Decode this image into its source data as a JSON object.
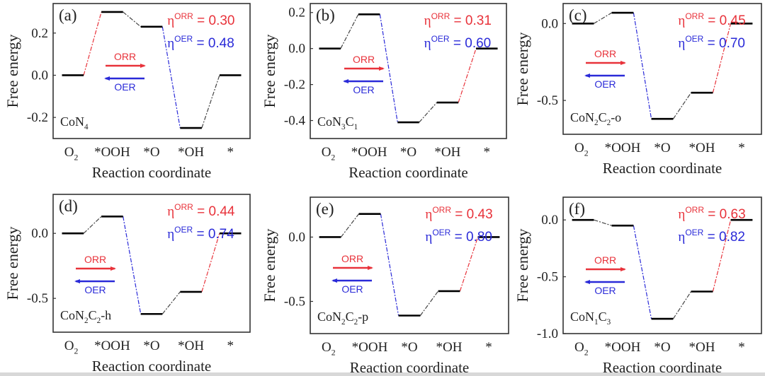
{
  "figure": {
    "ylabel": "Free energy",
    "xlabel": "Reaction coordinate",
    "steps": [
      "O2",
      "*OOH",
      "*O",
      "*OH",
      "*"
    ],
    "orr_label": "ORR",
    "oer_label": "OER",
    "eta_symbol": "η",
    "orr_color": "#e8323a",
    "oer_color": "#2a2ad8",
    "level_color": "#000000",
    "connector_color": "#444444"
  },
  "chart_data": [
    {
      "type": "line",
      "panel": "(a)",
      "catalyst": {
        "base": "CoN",
        "parts": [
          [
            "N",
            "4"
          ]
        ],
        "text": "CoN4"
      },
      "title": "",
      "xlabel": "Reaction coordinate",
      "ylabel": "Free energy",
      "categories": [
        "O2",
        "*OOH",
        "*O",
        "*OH",
        "*"
      ],
      "values": [
        0.0,
        0.3,
        0.23,
        -0.25,
        0.0
      ],
      "connector_colors": [
        "orr",
        "neutral",
        "oer",
        "neutral"
      ],
      "yticks": [
        -0.2,
        0.0,
        0.2
      ],
      "ytick_labels": [
        "-0.2",
        "0.0",
        "0.2"
      ],
      "ylim": [
        -0.3,
        0.34
      ],
      "eta_orr": "0.30",
      "eta_oer": "0.48",
      "grid": false,
      "legend": "arrows ORR (right, red) / OER (left, blue) at center-left"
    },
    {
      "type": "line",
      "panel": "(b)",
      "catalyst": {
        "text": "CoN3C1"
      },
      "title": "",
      "xlabel": "Reaction coordinate",
      "ylabel": "Free energy",
      "categories": [
        "O2",
        "*OOH",
        "*O",
        "*OH",
        "*"
      ],
      "values": [
        0.0,
        0.19,
        -0.41,
        -0.3,
        0.0
      ],
      "connector_colors": [
        "neutral",
        "oer",
        "neutral",
        "orr"
      ],
      "yticks": [
        -0.4,
        -0.2,
        0.0,
        0.2
      ],
      "ytick_labels": [
        "-0.4",
        "-0.2",
        "0.0",
        "0.2"
      ],
      "ylim": [
        -0.5,
        0.25
      ],
      "eta_orr": "0.31",
      "eta_oer": "0.60",
      "grid": false,
      "legend": "arrows ORR (right, red) / OER (left, blue) at center-left"
    },
    {
      "type": "line",
      "panel": "(c)",
      "catalyst": {
        "text": "CoN2C2-o"
      },
      "title": "",
      "xlabel": "Reaction coordinate",
      "ylabel": "Free energy",
      "categories": [
        "O2",
        "*OOH",
        "*O",
        "*OH",
        "*"
      ],
      "values": [
        0.0,
        0.07,
        -0.62,
        -0.45,
        0.0
      ],
      "connector_colors": [
        "neutral",
        "oer",
        "neutral",
        "orr"
      ],
      "yticks": [
        -0.5,
        0.0
      ],
      "ytick_labels": [
        "-0.5",
        "0.0"
      ],
      "ylim": [
        -0.72,
        0.13
      ],
      "eta_orr": "0.45",
      "eta_oer": "0.70",
      "grid": false,
      "legend": "arrows ORR (right, red) / OER (left, blue) at center-left"
    },
    {
      "type": "line",
      "panel": "(d)",
      "catalyst": {
        "text": "CoN2C2-h"
      },
      "title": "",
      "xlabel": "Reaction coordinate",
      "ylabel": "Free energy",
      "categories": [
        "O2",
        "*OOH",
        "*O",
        "*OH",
        "*"
      ],
      "values": [
        0.0,
        0.13,
        -0.62,
        -0.45,
        0.0
      ],
      "connector_colors": [
        "neutral",
        "oer",
        "neutral",
        "orr"
      ],
      "yticks": [
        -0.5,
        0.0
      ],
      "ytick_labels": [
        "-0.5",
        "0.0"
      ],
      "ylim": [
        -0.76,
        0.3
      ],
      "eta_orr": "0.44",
      "eta_oer": "0.74",
      "grid": false,
      "legend": "arrows ORR (right, red) / OER (left, blue) at center-left"
    },
    {
      "type": "line",
      "panel": "(e)",
      "catalyst": {
        "text": "CoN2C2-p"
      },
      "title": "",
      "xlabel": "Reaction coordinate",
      "ylabel": "Free energy",
      "categories": [
        "O2",
        "*OOH",
        "*O",
        "*OH",
        "*"
      ],
      "values": [
        0.0,
        0.18,
        -0.61,
        -0.42,
        0.0
      ],
      "connector_colors": [
        "neutral",
        "oer",
        "neutral",
        "orr"
      ],
      "yticks": [
        -0.5,
        0.0
      ],
      "ytick_labels": [
        "-0.5",
        "0.0"
      ],
      "ylim": [
        -0.75,
        0.31
      ],
      "eta_orr": "0.43",
      "eta_oer": "0.80",
      "grid": false,
      "legend": "arrows ORR (right, red) / OER (left, blue) at center-left"
    },
    {
      "type": "line",
      "panel": "(f)",
      "catalyst": {
        "text": "CoN1C3"
      },
      "title": "",
      "xlabel": "Reaction coordinate",
      "ylabel": "Free energy",
      "categories": [
        "O2",
        "*OOH",
        "*O",
        "*OH",
        "*"
      ],
      "values": [
        0.0,
        -0.05,
        -0.87,
        -0.63,
        0.0
      ],
      "connector_colors": [
        "neutral",
        "oer",
        "neutral",
        "orr"
      ],
      "yticks": [
        -1.0,
        -0.5,
        0.0
      ],
      "ytick_labels": [
        "-1.0",
        "-0.5",
        "0.0"
      ],
      "ylim": [
        -1.0,
        0.2
      ],
      "eta_orr": "0.63",
      "eta_oer": "0.82",
      "grid": false,
      "legend": "arrows ORR (right, red) / OER (left, blue) at center-left"
    }
  ]
}
